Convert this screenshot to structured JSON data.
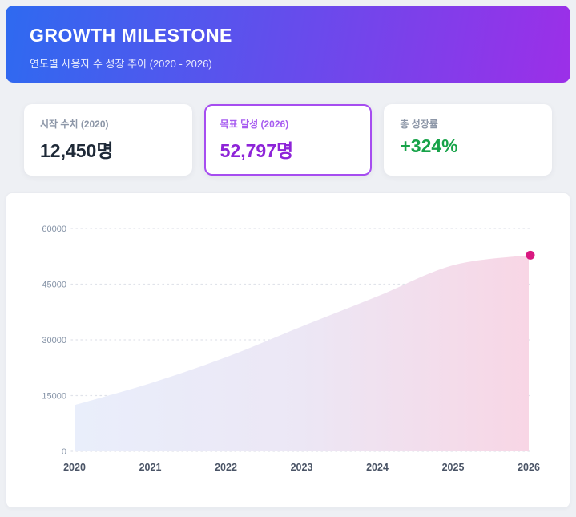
{
  "header": {
    "title": "GROWTH MILESTONE",
    "subtitle": "연도별 사용자 수 성장 추이 (2020 - 2026)"
  },
  "stats": {
    "start": {
      "label": "시작 수치 (2020)",
      "value": "12,450명"
    },
    "goal": {
      "label": "목표 달성 (2026)",
      "value": "52,797명"
    },
    "growth": {
      "label": "총 성장률",
      "value": "+324%"
    }
  },
  "colors": {
    "header_gradient_start": "#2e6af0",
    "header_gradient_end": "#9c2fe8",
    "goal_accent": "#a64df0",
    "goal_value": "#8e24d8",
    "growth_value": "#17a349",
    "end_dot": "#d91880",
    "gridline": "#e0e3ea",
    "area_gradient": [
      "#e9eefb",
      "#ece7f5",
      "#f8d6e5"
    ]
  },
  "chart_data": {
    "type": "area",
    "title": "",
    "xlabel": "",
    "ylabel": "",
    "x": [
      2020,
      2021,
      2022,
      2023,
      2024,
      2025,
      2026
    ],
    "values": [
      12450,
      18300,
      25300,
      33600,
      41700,
      50100,
      52797
    ],
    "ylim": [
      0,
      60000
    ],
    "yticks": [
      0,
      15000,
      30000,
      45000,
      60000
    ],
    "grid": "horizontal-dotted",
    "legend": "none",
    "end_dot_value": 52797
  }
}
